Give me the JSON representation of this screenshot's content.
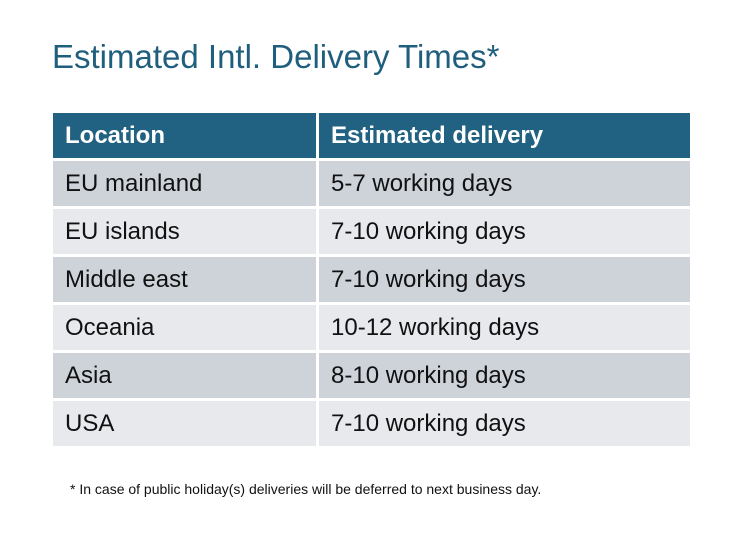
{
  "title": "Estimated Intl. Delivery Times*",
  "table": {
    "headers": [
      "Location",
      "Estimated delivery"
    ],
    "rows": [
      [
        "EU mainland",
        "5-7 working days"
      ],
      [
        "EU islands",
        "7-10 working days"
      ],
      [
        "Middle east",
        "7-10 working days"
      ],
      [
        "Oceania",
        "10-12 working days"
      ],
      [
        "Asia",
        "8-10 working days"
      ],
      [
        "USA",
        "7-10 working days"
      ]
    ]
  },
  "footnote": "* In case of public holiday(s) deliveries will be deferred to next business day.",
  "colors": {
    "title": "#1f5f7d",
    "header": "#216182",
    "row_dark": "#ced3da",
    "row_light": "#e7e9ec"
  }
}
